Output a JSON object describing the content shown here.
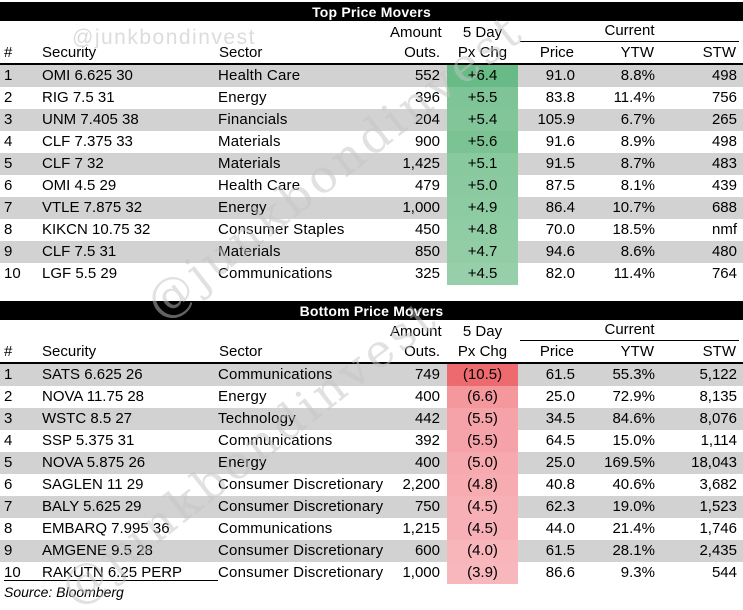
{
  "watermark": {
    "handle": "@junkbondinvest"
  },
  "source_note": "Source: Bloomberg",
  "colors": {
    "title_bar_bg": "#000000",
    "title_bar_text": "#ffffff",
    "row_band_gray": "#d2d2d2",
    "positive_strongest": "#68bb87",
    "positive_lightest": "#97cfaa",
    "negative_strongest": "#ed6a6e",
    "negative_lightest": "#f8b7bc"
  },
  "header": {
    "num": "#",
    "security": "Security",
    "sector": "Sector",
    "amount_line1": "Amount",
    "amount_line2": "Outs.",
    "pxchg_line1": "5 Day",
    "pxchg_line2": "Px Chg",
    "current_group": "Current",
    "price": "Price",
    "ytw": "YTW",
    "stw": "STW"
  },
  "chart_data": [
    {
      "type": "table",
      "title": "Top Price Movers",
      "columns": [
        "#",
        "Security",
        "Sector",
        "Amount Outs.",
        "5 Day Px Chg",
        "Price",
        "YTW",
        "STW"
      ],
      "rows": [
        {
          "num": "1",
          "security": "OMI 6.625 30",
          "sector": "Health Care",
          "amount_outs": "552",
          "px_chg_5day": "+6.4",
          "price": "91.0",
          "ytw": "8.8%",
          "stw": "498",
          "chg_bg": "#68bb87"
        },
        {
          "num": "2",
          "security": "RIG 7.5 31",
          "sector": "Energy",
          "amount_outs": "396",
          "px_chg_5day": "+5.5",
          "price": "83.8",
          "ytw": "11.4%",
          "stw": "756",
          "chg_bg": "#7fc496"
        },
        {
          "num": "3",
          "security": "UNM 7.405 38",
          "sector": "Financials",
          "amount_outs": "204",
          "px_chg_5day": "+5.4",
          "price": "105.9",
          "ytw": "6.7%",
          "stw": "265",
          "chg_bg": "#81c598"
        },
        {
          "num": "4",
          "security": "CLF 7.375 33",
          "sector": "Materials",
          "amount_outs": "900",
          "px_chg_5day": "+5.6",
          "price": "91.6",
          "ytw": "8.9%",
          "stw": "498",
          "chg_bg": "#7cc394"
        },
        {
          "num": "5",
          "security": "CLF 7 32",
          "sector": "Materials",
          "amount_outs": "1,425",
          "px_chg_5day": "+5.1",
          "price": "91.5",
          "ytw": "8.7%",
          "stw": "483",
          "chg_bg": "#88c99e"
        },
        {
          "num": "6",
          "security": "OMI 4.5 29",
          "sector": "Health Care",
          "amount_outs": "479",
          "px_chg_5day": "+5.0",
          "price": "87.5",
          "ytw": "8.1%",
          "stw": "439",
          "chg_bg": "#8bcaa0"
        },
        {
          "num": "7",
          "security": "VTLE 7.875 32",
          "sector": "Energy",
          "amount_outs": "1,000",
          "px_chg_5day": "+4.9",
          "price": "86.4",
          "ytw": "10.7%",
          "stw": "688",
          "chg_bg": "#8dcba2"
        },
        {
          "num": "8",
          "security": "KIKCN 10.75 32",
          "sector": "Consumer Staples",
          "amount_outs": "450",
          "px_chg_5day": "+4.8",
          "price": "70.0",
          "ytw": "18.5%",
          "stw": "nmf",
          "chg_bg": "#90cca4"
        },
        {
          "num": "9",
          "security": "CLF 7.5 31",
          "sector": "Materials",
          "amount_outs": "850",
          "px_chg_5day": "+4.7",
          "price": "94.6",
          "ytw": "8.6%",
          "stw": "480",
          "chg_bg": "#92cda6"
        },
        {
          "num": "10",
          "security": "LGF 5.5 29",
          "sector": "Communications",
          "amount_outs": "325",
          "px_chg_5day": "+4.5",
          "price": "82.0",
          "ytw": "11.4%",
          "stw": "764",
          "chg_bg": "#97cfaa"
        }
      ]
    },
    {
      "type": "table",
      "title": "Bottom Price Movers",
      "columns": [
        "#",
        "Security",
        "Sector",
        "Amount Outs.",
        "5 Day Px Chg",
        "Price",
        "YTW",
        "STW"
      ],
      "rows": [
        {
          "num": "1",
          "security": "SATS 6.625 26",
          "sector": "Communications",
          "amount_outs": "749",
          "px_chg_5day": "(10.5)",
          "price": "61.5",
          "ytw": "55.3%",
          "stw": "5,122",
          "chg_bg": "#ed6a6e"
        },
        {
          "num": "2",
          "security": "NOVA 11.75 28",
          "sector": "Energy",
          "amount_outs": "400",
          "px_chg_5day": "(6.6)",
          "price": "25.0",
          "ytw": "72.9%",
          "stw": "8,135",
          "chg_bg": "#f4989d"
        },
        {
          "num": "3",
          "security": "WSTC 8.5 27",
          "sector": "Technology",
          "amount_outs": "442",
          "px_chg_5day": "(5.5)",
          "price": "34.5",
          "ytw": "84.6%",
          "stw": "8,076",
          "chg_bg": "#f5a3a8"
        },
        {
          "num": "4",
          "security": "SSP 5.375 31",
          "sector": "Communications",
          "amount_outs": "392",
          "px_chg_5day": "(5.5)",
          "price": "64.5",
          "ytw": "15.0%",
          "stw": "1,114",
          "chg_bg": "#f5a3a8"
        },
        {
          "num": "5",
          "security": "NOVA 5.875 26",
          "sector": "Energy",
          "amount_outs": "400",
          "px_chg_5day": "(5.0)",
          "price": "25.0",
          "ytw": "169.5%",
          "stw": "18,043",
          "chg_bg": "#f6a9ae"
        },
        {
          "num": "6",
          "security": "SAGLEN 11 29",
          "sector": "Consumer Discretionary",
          "amount_outs": "2,200",
          "px_chg_5day": "(4.8)",
          "price": "40.8",
          "ytw": "40.6%",
          "stw": "3,682",
          "chg_bg": "#f6acb1"
        },
        {
          "num": "7",
          "security": "BALY 5.625 29",
          "sector": "Consumer Discretionary",
          "amount_outs": "750",
          "px_chg_5day": "(4.5)",
          "price": "62.3",
          "ytw": "19.0%",
          "stw": "1,523",
          "chg_bg": "#f7b0b5"
        },
        {
          "num": "8",
          "security": "EMBARQ 7.995 36",
          "sector": "Communications",
          "amount_outs": "1,215",
          "px_chg_5day": "(4.5)",
          "price": "44.0",
          "ytw": "21.4%",
          "stw": "1,746",
          "chg_bg": "#f7b0b5"
        },
        {
          "num": "9",
          "security": "AMGENE 9.5 28",
          "sector": "Consumer Discretionary",
          "amount_outs": "600",
          "px_chg_5day": "(4.0)",
          "price": "61.5",
          "ytw": "28.1%",
          "stw": "2,435",
          "chg_bg": "#f8b6bb"
        },
        {
          "num": "10",
          "security": "RAKUTN 6.25 PERP",
          "sector": "Consumer Discretionary",
          "amount_outs": "1,000",
          "px_chg_5day": "(3.9)",
          "price": "86.6",
          "ytw": "9.3%",
          "stw": "544",
          "chg_bg": "#f8b7bc"
        }
      ]
    }
  ]
}
